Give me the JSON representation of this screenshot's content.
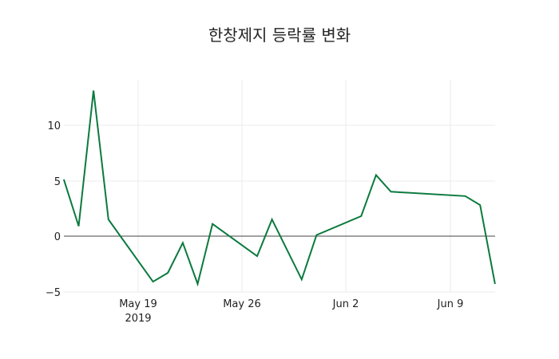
{
  "chart_data": {
    "type": "line",
    "title": "한창제지 등락률 변화",
    "xlabel": "",
    "ylabel": "",
    "ylim": [
      -5,
      14
    ],
    "grid": true,
    "legend": "none",
    "line_color": "#0b7a3e",
    "x_ticks": [
      "May 19\n2019",
      "May 26",
      "Jun 2",
      "Jun 9"
    ],
    "y_ticks": [
      -5,
      0,
      5,
      10
    ],
    "x": [
      "2019-05-14",
      "2019-05-15",
      "2019-05-16",
      "2019-05-17",
      "2019-05-20",
      "2019-05-21",
      "2019-05-22",
      "2019-05-23",
      "2019-05-24",
      "2019-05-27",
      "2019-05-28",
      "2019-05-30",
      "2019-05-31",
      "2019-06-03",
      "2019-06-04",
      "2019-06-05",
      "2019-06-10",
      "2019-06-11",
      "2019-06-12"
    ],
    "series": [
      {
        "name": "등락률",
        "values": [
          5.1,
          0.9,
          13.1,
          1.5,
          -4.1,
          -3.3,
          -0.6,
          -4.3,
          1.1,
          -1.8,
          1.5,
          -3.9,
          0.1,
          1.8,
          5.5,
          4.0,
          3.6,
          2.8,
          -4.3
        ]
      }
    ]
  },
  "axis": {
    "x_labels": [
      "May 19",
      "May 26",
      "Jun 2",
      "Jun 9"
    ],
    "x_year": "2019",
    "y_labels": [
      "10",
      "5",
      "0",
      "−5"
    ]
  }
}
